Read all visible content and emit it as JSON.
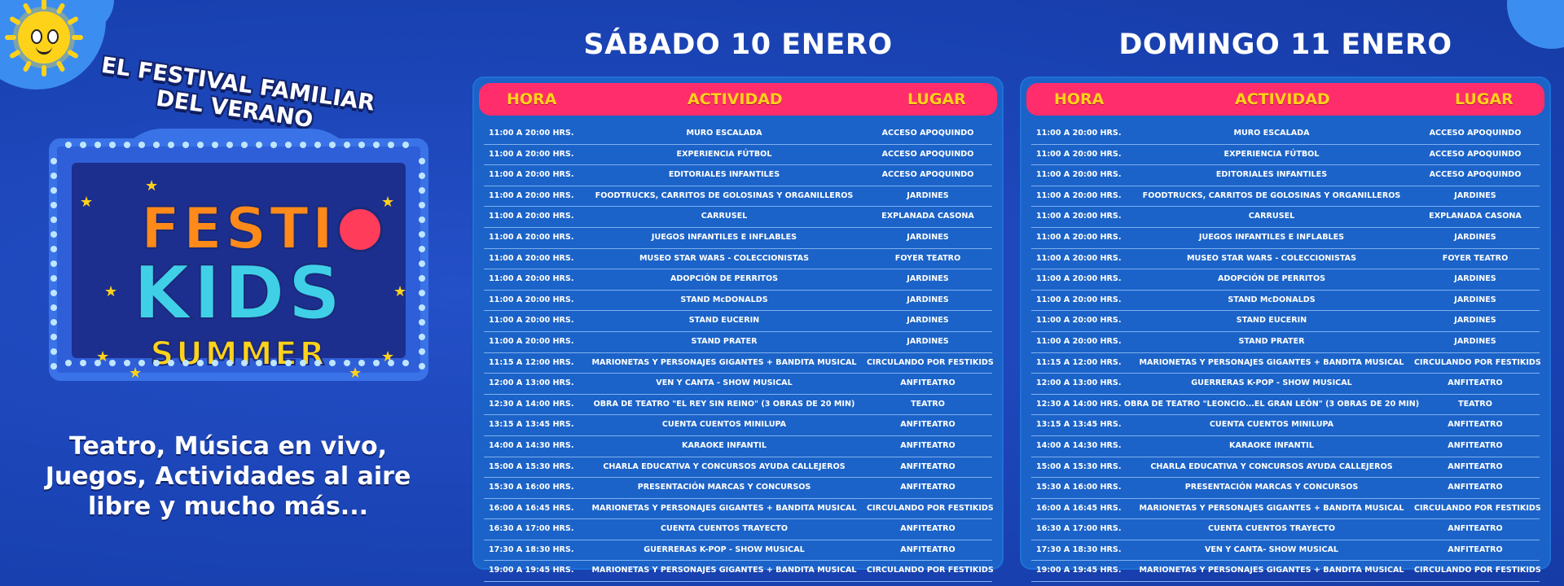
{
  "left": {
    "tagline": "EL FESTIVAL FAMILIAR DEL VERANO",
    "logo": {
      "festi": "FESTI",
      "kids": "KIDS",
      "summer": "SUMMER"
    },
    "promo": [
      "Teatro, Música en vivo,",
      "Juegos,  Actividades al aire",
      "libre y mucho más..."
    ]
  },
  "headers": {
    "hora": "HORA",
    "actividad": "ACTIVIDAD",
    "lugar": "LUGAR"
  },
  "saturday": {
    "title": "SÁBADO 10 ENERO",
    "rows": [
      {
        "h": "11:00 A 20:00 HRS.",
        "a": "MURO ESCALADA",
        "l": "ACCESO APOQUINDO"
      },
      {
        "h": "11:00 A 20:00 HRS.",
        "a": "EXPERIENCIA FÚTBOL",
        "l": "ACCESO APOQUINDO"
      },
      {
        "h": "11:00 A 20:00 HRS.",
        "a": "EDITORIALES INFANTILES",
        "l": "ACCESO APOQUINDO"
      },
      {
        "h": "11:00 A 20:00 HRS.",
        "a": "FOODTRUCKS, CARRITOS DE GOLOSINAS  Y ORGANILLEROS",
        "l": "JARDINES"
      },
      {
        "h": "11:00 A 20:00 HRS.",
        "a": "CARRUSEL",
        "l": "EXPLANADA CASONA"
      },
      {
        "h": "11:00 A 20:00 HRS.",
        "a": "JUEGOS INFANTILES E INFLABLES",
        "l": "JARDINES"
      },
      {
        "h": "11:00 A 20:00 HRS.",
        "a": "MUSEO STAR WARS - COLECCIONISTAS",
        "l": "FOYER TEATRO"
      },
      {
        "h": "11:00 A 20:00 HRS.",
        "a": "ADOPCIÓN DE PERRITOS",
        "l": "JARDINES"
      },
      {
        "h": "11:00 A 20:00 HRS.",
        "a": "STAND McDONALDS",
        "l": "JARDINES"
      },
      {
        "h": "11:00 A 20:00 HRS.",
        "a": "STAND EUCERIN",
        "l": "JARDINES"
      },
      {
        "h": "11:00 A 20:00 HRS.",
        "a": "STAND PRATER",
        "l": "JARDINES"
      },
      {
        "h": "11:15 A 12:00 HRS.",
        "a": "MARIONETAS Y PERSONAJES GIGANTES + BANDITA MUSICAL",
        "l": "CIRCULANDO POR FESTIKIDS"
      },
      {
        "h": "12:00 A 13:00 HRS.",
        "a": "VEN Y CANTA - SHOW MUSICAL",
        "l": "ANFITEATRO"
      },
      {
        "h": "12:30 A 14:00 HRS.",
        "a": "OBRA DE TEATRO \"EL REY SIN REINO\" (3 OBRAS DE 20 MIN)",
        "l": "TEATRO"
      },
      {
        "h": "13:15 A 13:45 HRS.",
        "a": "CUENTA CUENTOS MINILUPA",
        "l": "ANFITEATRO"
      },
      {
        "h": "14:00 A 14:30 HRS.",
        "a": "KARAOKE INFANTIL",
        "l": "ANFITEATRO"
      },
      {
        "h": "15:00 A 15:30 HRS.",
        "a": "CHARLA EDUCATIVA Y CONCURSOS AYUDA CALLEJEROS",
        "l": "ANFITEATRO"
      },
      {
        "h": "15:30 A 16:00 HRS.",
        "a": "PRESENTACIÓN MARCAS Y CONCURSOS",
        "l": "ANFITEATRO"
      },
      {
        "h": "16:00 A 16:45 HRS.",
        "a": "MARIONETAS Y PERSONAJES GIGANTES + BANDITA MUSICAL",
        "l": "CIRCULANDO POR FESTIKIDS"
      },
      {
        "h": "16:30 A 17:00 HRS.",
        "a": "CUENTA CUENTOS TRAYECTO",
        "l": "ANFITEATRO"
      },
      {
        "h": "17:30 A 18:30 HRS.",
        "a": "GUERRERAS K-POP - SHOW MUSICAL",
        "l": "ANFITEATRO"
      },
      {
        "h": "19:00 A 19:45 HRS.",
        "a": "MARIONETAS Y PERSONAJES GIGANTES + BANDITA MUSICAL",
        "l": "CIRCULANDO POR FESTIKIDS"
      }
    ]
  },
  "sunday": {
    "title": "DOMINGO 11 ENERO",
    "rows": [
      {
        "h": "11:00 A 20:00 HRS.",
        "a": "MURO ESCALADA",
        "l": "ACCESO APOQUINDO"
      },
      {
        "h": "11:00 A 20:00 HRS.",
        "a": "EXPERIENCIA FÚTBOL",
        "l": "ACCESO APOQUINDO"
      },
      {
        "h": "11:00 A 20:00 HRS.",
        "a": "EDITORIALES INFANTILES",
        "l": "ACCESO APOQUINDO"
      },
      {
        "h": "11:00 A 20:00 HRS.",
        "a": "FOODTRUCKS, CARRITOS DE GOLOSINAS  Y ORGANILLEROS",
        "l": "JARDINES"
      },
      {
        "h": "11:00 A 20:00 HRS.",
        "a": "CARRUSEL",
        "l": "EXPLANADA CASONA"
      },
      {
        "h": "11:00 A 20:00 HRS.",
        "a": "JUEGOS INFANTILES E INFLABLES",
        "l": "JARDINES"
      },
      {
        "h": "11:00 A 20:00 HRS.",
        "a": "MUSEO STAR WARS - COLECCIONISTAS",
        "l": "FOYER TEATRO"
      },
      {
        "h": "11:00 A 20:00 HRS.",
        "a": "ADOPCIÓN DE PERRITOS",
        "l": "JARDINES"
      },
      {
        "h": "11:00 A 20:00 HRS.",
        "a": "STAND McDONALDS",
        "l": "JARDINES"
      },
      {
        "h": "11:00 A 20:00 HRS.",
        "a": "STAND EUCERIN",
        "l": "JARDINES"
      },
      {
        "h": "11:00 A 20:00 HRS.",
        "a": "STAND PRATER",
        "l": "JARDINES"
      },
      {
        "h": "11:15 A 12:00 HRS.",
        "a": "MARIONETAS Y PERSONAJES GIGANTES + BANDITA MUSICAL",
        "l": "CIRCULANDO POR FESTIKIDS"
      },
      {
        "h": "12:00 A 13:00 HRS.",
        "a": "GUERRERAS K-POP - SHOW MUSICAL",
        "l": "ANFITEATRO"
      },
      {
        "h": "12:30 A 14:00 HRS.",
        "a": "OBRA DE TEATRO \"LEONCIO...EL GRAN LEÓN\" (3 OBRAS DE 20 MIN)",
        "l": "TEATRO"
      },
      {
        "h": "13:15 A 13:45 HRS.",
        "a": "CUENTA CUENTOS MINILUPA",
        "l": "ANFITEATRO"
      },
      {
        "h": "14:00 A 14:30 HRS.",
        "a": "KARAOKE INFANTIL",
        "l": "ANFITEATRO"
      },
      {
        "h": "15:00 A 15:30 HRS.",
        "a": "CHARLA EDUCATIVA Y CONCURSOS AYUDA CALLEJEROS",
        "l": "ANFITEATRO"
      },
      {
        "h": "15:30 A 16:00 HRS.",
        "a": "PRESENTACIÓN MARCAS Y CONCURSOS",
        "l": "ANFITEATRO"
      },
      {
        "h": "16:00 A 16:45 HRS.",
        "a": "MARIONETAS Y PERSONAJES GIGANTES + BANDITA MUSICAL",
        "l": "CIRCULANDO POR FESTIKIDS"
      },
      {
        "h": "16:30 A 17:00 HRS.",
        "a": "CUENTA CUENTOS TRAYECTO",
        "l": "ANFITEATRO"
      },
      {
        "h": "17:30 A 18:30 HRS.",
        "a": "VEN Y CANTA- SHOW MUSICAL",
        "l": "ANFITEATRO"
      },
      {
        "h": "19:00 A 19:45 HRS.",
        "a": "MARIONETAS Y PERSONAJES GIGANTES + BANDITA MUSICAL",
        "l": "CIRCULANDO POR FESTIKIDS"
      }
    ]
  },
  "colors": {
    "background": "#1b45b8",
    "panel": "#1b63c8",
    "header": "#ff2d6b",
    "header_text": "#ffd21a"
  },
  "icons": [
    "sun-icon",
    "theater-mask-icon",
    "star-icon"
  ]
}
